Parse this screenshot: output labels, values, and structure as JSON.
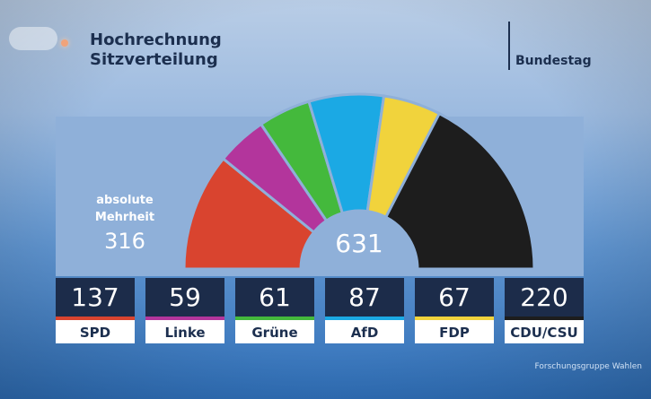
{
  "header": {
    "title_line1": "Hochrechnung",
    "title_line2": "Sitzverteilung",
    "parliament": "Bundestag"
  },
  "majority": {
    "label_line1": "absolute",
    "label_line2": "Mehrheit",
    "value": "316"
  },
  "total_seats": "631",
  "source": "Forschungsgruppe Wahlen",
  "chart_data": {
    "type": "pie",
    "variant": "semicircle-parliament",
    "total": 631,
    "categories": [
      "SPD",
      "Linke",
      "Grüne",
      "AfD",
      "FDP",
      "CDU/CSU"
    ],
    "values": [
      137,
      59,
      61,
      87,
      67,
      220
    ],
    "labels": [
      "137",
      "59",
      "61",
      "87",
      "67",
      "220"
    ],
    "colors": [
      "#d9442f",
      "#b3359c",
      "#44b93c",
      "#1ba9e4",
      "#f1d33c",
      "#1d1d1d"
    ]
  }
}
